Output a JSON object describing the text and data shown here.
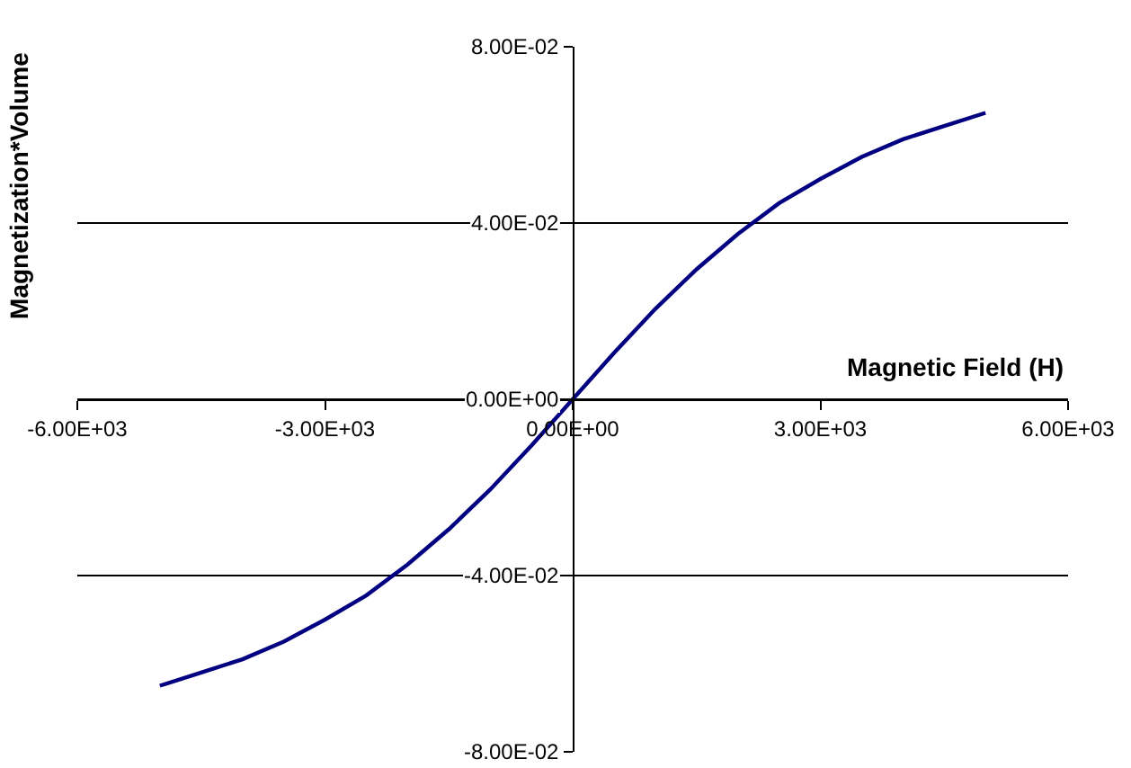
{
  "chart_data": {
    "type": "line",
    "xlabel": "Magnetic Field (H)",
    "ylabel": "Magnetization*Volume",
    "series": [
      {
        "color": "#000080",
        "x": [
          -5000,
          -4500,
          -4000,
          -3500,
          -3000,
          -2500,
          -2000,
          -1500,
          -1000,
          -500,
          0,
          500,
          1000,
          1500,
          2000,
          2500,
          3000,
          3500,
          4000,
          4500,
          5000
        ],
        "values": [
          -0.065,
          -0.062,
          -0.059,
          -0.055,
          -0.05,
          -0.0445,
          -0.0375,
          -0.0295,
          -0.0205,
          -0.0105,
          0,
          0.0105,
          0.0205,
          0.0295,
          0.0375,
          0.0445,
          0.05,
          0.055,
          0.059,
          0.062,
          0.065
        ]
      }
    ],
    "xlim": [
      -6000,
      6000
    ],
    "xticks": [
      {
        "value": -6000,
        "label": "-6.00E+03"
      },
      {
        "value": -3000,
        "label": "-3.00E+03"
      },
      {
        "value": 0,
        "label": "0.00E+00"
      },
      {
        "value": 3000,
        "label": "3.00E+03"
      },
      {
        "value": 6000,
        "label": "6.00E+03"
      }
    ],
    "ylim": [
      -0.08,
      0.08
    ],
    "yticks": [
      {
        "value": -0.08,
        "label": "-8.00E-02"
      },
      {
        "value": -0.04,
        "label": "-4.00E-02"
      },
      {
        "value": 0,
        "label": "0.00E+00"
      },
      {
        "value": 0.04,
        "label": "4.00E-02"
      },
      {
        "value": 0.08,
        "label": "8.00E-02"
      }
    ],
    "grid": "y",
    "marker": "none",
    "line_style": "solid"
  }
}
